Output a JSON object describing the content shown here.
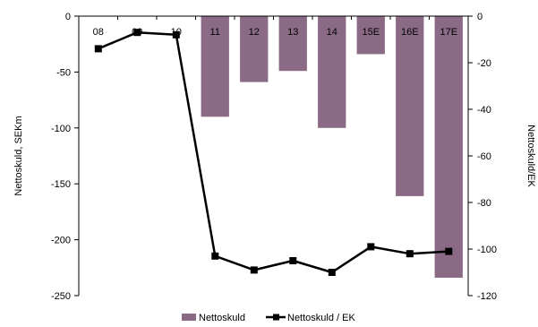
{
  "chart_data": {
    "type": "bar+line",
    "categories": [
      "08",
      "09",
      "10",
      "11",
      "12",
      "13",
      "14",
      "15E",
      "16E",
      "17E"
    ],
    "series": [
      {
        "name": "Nettoskuld",
        "kind": "bar",
        "axis": "left",
        "color": "#8B6A86",
        "values": [
          0,
          0,
          0,
          -90,
          -59,
          -49,
          -100,
          -34,
          -161,
          -234
        ]
      },
      {
        "name": "Nettoskuld / EK",
        "kind": "line",
        "axis": "right",
        "color": "#000000",
        "values": [
          -14,
          -7,
          -8,
          -103,
          -109,
          -105,
          -110,
          -99,
          -102,
          -101
        ]
      }
    ],
    "ylabel": "Nettoskuld, SEKm",
    "y2label": "Nettoskuld/EK",
    "ylim": [
      -250,
      0
    ],
    "y2lim": [
      -120,
      0
    ],
    "yticks": [
      0,
      -50,
      -100,
      -150,
      -200,
      -250
    ],
    "y2ticks": [
      0,
      -20,
      -40,
      -60,
      -80,
      -100,
      -120
    ],
    "legend_position": "bottom",
    "grid": false
  }
}
